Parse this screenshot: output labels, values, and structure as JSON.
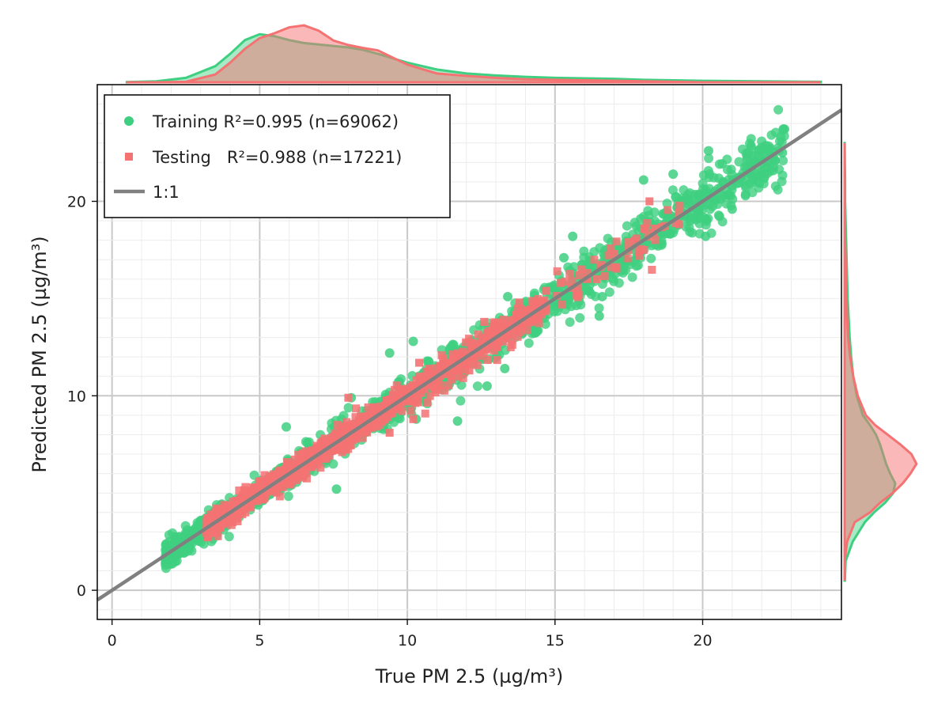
{
  "chart_data": {
    "type": "scatter",
    "title": "",
    "xlabel": "True PM 2.5 (µg/m³)",
    "ylabel": "Predicted PM 2.5 (µg/m³)",
    "xlim": [
      -0.5,
      24.7
    ],
    "ylim": [
      -1.5,
      26.0
    ],
    "x_ticks": [
      0,
      5,
      10,
      15,
      20
    ],
    "y_ticks": [
      0,
      10,
      20
    ],
    "grid": true,
    "legend_position": "top-left",
    "series": [
      {
        "name": "Training",
        "legend_label": "Training R²=0.995 (n=69062)",
        "r2": 0.995,
        "n": 69062,
        "marker": "circle",
        "color": "#3ecf80",
        "x_range": [
          1.8,
          22.8
        ],
        "points": [
          [
            1.9,
            1.9
          ],
          [
            2.2,
            2.3
          ],
          [
            2.6,
            2.7
          ],
          [
            3.0,
            3.0
          ],
          [
            3.5,
            3.4
          ],
          [
            4.0,
            4.1
          ],
          [
            4.6,
            4.5
          ],
          [
            5.1,
            5.4
          ],
          [
            5.6,
            5.6
          ],
          [
            6.1,
            6.3
          ],
          [
            6.7,
            6.8
          ],
          [
            7.2,
            7.4
          ],
          [
            7.8,
            7.7
          ],
          [
            8.3,
            8.5
          ],
          [
            8.9,
            9.1
          ],
          [
            9.4,
            9.4
          ],
          [
            10.0,
            10.2
          ],
          [
            10.5,
            10.5
          ],
          [
            11.1,
            11.3
          ],
          [
            11.7,
            11.6
          ],
          [
            12.2,
            12.4
          ],
          [
            12.8,
            12.9
          ],
          [
            13.4,
            13.3
          ],
          [
            14.0,
            14.1
          ],
          [
            14.5,
            14.4
          ],
          [
            15.1,
            15.3
          ],
          [
            15.7,
            15.6
          ],
          [
            16.2,
            16.4
          ],
          [
            16.8,
            16.6
          ],
          [
            17.4,
            17.5
          ],
          [
            18.0,
            18.1
          ],
          [
            18.6,
            18.4
          ],
          [
            19.2,
            19.3
          ],
          [
            19.8,
            19.6
          ],
          [
            20.4,
            20.5
          ],
          [
            21.0,
            20.8
          ],
          [
            21.6,
            21.4
          ],
          [
            22.2,
            22.0
          ],
          [
            22.7,
            22.5
          ],
          [
            5.9,
            8.4
          ],
          [
            8.1,
            9.9
          ],
          [
            10.2,
            12.8
          ],
          [
            13.4,
            15.1
          ],
          [
            15.6,
            18.2
          ],
          [
            18.0,
            21.1
          ],
          [
            20.2,
            22.6
          ],
          [
            7.6,
            5.2
          ],
          [
            10.3,
            8.8
          ],
          [
            13.3,
            11.4
          ],
          [
            16.5,
            14.1
          ],
          [
            12.7,
            10.5
          ],
          [
            11.7,
            8.7
          ],
          [
            13.2,
            13.9
          ],
          [
            16.6,
            15.1
          ],
          [
            20.1,
            18.2
          ],
          [
            21.0,
            19.6
          ],
          [
            17.9,
            19.1
          ],
          [
            19.0,
            21.4
          ],
          [
            21.5,
            22.3
          ],
          [
            15.3,
            17.1
          ],
          [
            9.4,
            12.2
          ],
          [
            6.2,
            6.5
          ],
          [
            4.6,
            5.0
          ],
          [
            11.7,
            11.8
          ],
          [
            14.3,
            14.9
          ]
        ]
      },
      {
        "name": "Testing",
        "legend_label": "Testing   R²=0.988 (n=17221)",
        "r2": 0.988,
        "n": 17221,
        "marker": "square",
        "color": "#f57273",
        "x_range": [
          3.2,
          19.5
        ],
        "points": [
          [
            3.3,
            3.3
          ],
          [
            3.8,
            3.8
          ],
          [
            4.3,
            4.2
          ],
          [
            4.8,
            4.9
          ],
          [
            5.3,
            5.2
          ],
          [
            5.8,
            5.8
          ],
          [
            6.3,
            6.4
          ],
          [
            6.8,
            6.7
          ],
          [
            7.3,
            7.4
          ],
          [
            7.8,
            7.8
          ],
          [
            8.3,
            8.4
          ],
          [
            8.8,
            8.7
          ],
          [
            9.3,
            9.4
          ],
          [
            9.8,
            9.9
          ],
          [
            10.3,
            10.2
          ],
          [
            10.8,
            10.9
          ],
          [
            11.3,
            11.2
          ],
          [
            11.8,
            11.9
          ],
          [
            12.3,
            12.4
          ],
          [
            12.8,
            12.7
          ],
          [
            13.3,
            13.4
          ],
          [
            13.8,
            13.9
          ],
          [
            14.2,
            14.1
          ],
          [
            14.7,
            15.4
          ],
          [
            15.9,
            16.5
          ],
          [
            17.0,
            17.3
          ],
          [
            17.5,
            17.9
          ],
          [
            18.0,
            17.5
          ],
          [
            18.4,
            18.6
          ],
          [
            18.2,
            20.0
          ],
          [
            9.4,
            8.1
          ],
          [
            10.2,
            8.8
          ],
          [
            12.1,
            11.3
          ],
          [
            8.0,
            9.9
          ],
          [
            10.4,
            11.7
          ],
          [
            12.6,
            13.8
          ],
          [
            13.8,
            14.8
          ],
          [
            6.1,
            5.6
          ],
          [
            7.2,
            7.8
          ],
          [
            15.2,
            15.8
          ],
          [
            16.4,
            16.0
          ],
          [
            11.0,
            10.3
          ]
        ]
      },
      {
        "name": "1:1",
        "legend_label": "1:1",
        "type": "line",
        "color": "#808080",
        "x": [
          -0.5,
          24.7
        ],
        "y": [
          -0.5,
          24.7
        ]
      }
    ],
    "marginal_x_density": {
      "x": [
        0.5,
        1.5,
        2.5,
        3.5,
        4.0,
        4.5,
        5.0,
        5.5,
        6.0,
        6.5,
        7.0,
        7.5,
        8.0,
        8.5,
        9.0,
        10.0,
        11.0,
        12.0,
        13.0,
        14.0,
        15.0,
        16.0,
        17.0,
        18.0,
        19.0,
        20.0,
        22.0,
        24.0
      ],
      "training": [
        0.005,
        0.02,
        0.09,
        0.33,
        0.58,
        0.86,
        0.98,
        0.94,
        0.86,
        0.8,
        0.77,
        0.74,
        0.71,
        0.66,
        0.58,
        0.4,
        0.26,
        0.18,
        0.14,
        0.11,
        0.09,
        0.08,
        0.07,
        0.05,
        0.04,
        0.03,
        0.02,
        0.01
      ],
      "testing": [
        0.0,
        0.0,
        0.01,
        0.16,
        0.4,
        0.68,
        0.9,
        1.0,
        1.12,
        1.16,
        1.05,
        0.85,
        0.76,
        0.7,
        0.65,
        0.36,
        0.18,
        0.13,
        0.09,
        0.06,
        0.05,
        0.04,
        0.03,
        0.02,
        0.01,
        0.0,
        0.0,
        0.0
      ]
    },
    "marginal_y_density": {
      "y": [
        0.5,
        1.5,
        2.5,
        3.5,
        4.0,
        4.5,
        5.0,
        5.5,
        6.0,
        6.5,
        7.0,
        7.5,
        8.0,
        8.5,
        9.0,
        10.0,
        11.0,
        12.0,
        13.0,
        14.0,
        15.0,
        16.0,
        17.0,
        18.0,
        19.0,
        20.0,
        21.0,
        22.0,
        23.0
      ],
      "training": [
        0.005,
        0.02,
        0.16,
        0.4,
        0.58,
        0.8,
        0.96,
        1.0,
        0.9,
        0.82,
        0.76,
        0.7,
        0.62,
        0.5,
        0.36,
        0.24,
        0.17,
        0.13,
        0.1,
        0.08,
        0.06,
        0.05,
        0.04,
        0.03,
        0.02,
        0.01,
        0.01,
        0.005,
        0.002
      ],
      "testing": [
        0.0,
        0.0,
        0.05,
        0.2,
        0.5,
        0.7,
        0.95,
        1.15,
        1.3,
        1.42,
        1.32,
        1.1,
        0.85,
        0.6,
        0.42,
        0.26,
        0.17,
        0.11,
        0.07,
        0.05,
        0.04,
        0.03,
        0.02,
        0.01,
        0.01,
        0.005,
        0.002,
        0.0,
        0.0
      ]
    }
  }
}
